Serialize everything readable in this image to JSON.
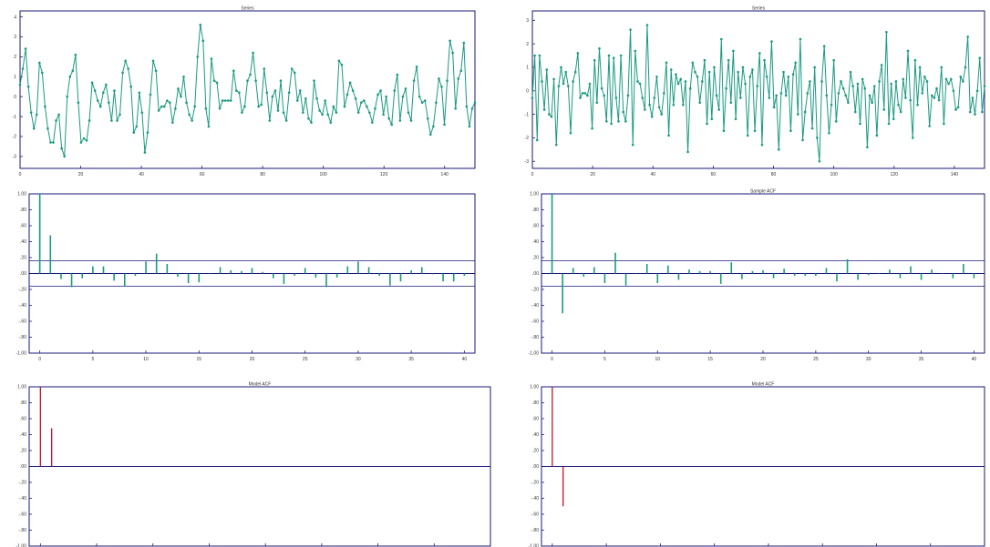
{
  "colors": {
    "series": "#1a9a80",
    "sample_acf": "#1a9a80",
    "model_acf": "#c8102e",
    "frame": "#1a1a7a",
    "bound": "#1a1a7a"
  },
  "chart_data": [
    {
      "id": "series-left",
      "type": "line",
      "title": "Series",
      "xlim": [
        0,
        150
      ],
      "ylim": [
        -3.6,
        4.3
      ],
      "xticks": [
        "0",
        "20",
        "40",
        "60",
        "80",
        "100",
        "120",
        "140"
      ],
      "yticks": [
        "-3",
        "-2",
        "-1",
        "0",
        "1",
        "2",
        "3",
        "4"
      ],
      "values": [
        0.6,
        1.4,
        2.4,
        0.5,
        -0.8,
        -1.6,
        -0.9,
        1.7,
        1.2,
        -0.5,
        -1.6,
        -2.3,
        -2.3,
        -1.2,
        -0.9,
        -2.6,
        -3.0,
        0.0,
        1.0,
        1.3,
        2.1,
        -0.3,
        -2.3,
        -2.1,
        -2.2,
        -1.2,
        0.7,
        0.3,
        -0.2,
        -0.5,
        0.2,
        0.6,
        -0.3,
        -1.2,
        0.3,
        -1.2,
        -0.9,
        1.2,
        1.8,
        1.4,
        0.5,
        -1.8,
        -1.5,
        0.2,
        -0.8,
        -2.8,
        -1.8,
        0.1,
        1.8,
        1.3,
        -0.7,
        -0.5,
        -0.5,
        -0.2,
        -0.3,
        -1.3,
        -0.6,
        0.4,
        0.0,
        1.0,
        -0.3,
        -0.9,
        -1.2,
        -0.5,
        2.0,
        3.6,
        2.8,
        -0.6,
        -1.5,
        1.9,
        0.8,
        0.7,
        -0.6,
        -0.2,
        -0.2,
        -0.2,
        -0.2,
        1.3,
        0.3,
        0.2,
        -0.8,
        -0.5,
        0.8,
        1.1,
        2.2,
        0.8,
        -0.5,
        -0.4,
        1.4,
        0.2,
        -1.2,
        0.0,
        0.3,
        -0.7,
        0.8,
        -0.8,
        -1.2,
        0.2,
        1.4,
        1.2,
        -0.2,
        0.3,
        -0.8,
        -0.1,
        -1.1,
        -1.3,
        0.8,
        -0.1,
        -0.7,
        -0.9,
        -0.2,
        -0.9,
        -1.3,
        -0.5,
        -0.8,
        1.8,
        1.6,
        -0.5,
        0.1,
        0.7,
        0.3,
        -0.1,
        -0.8,
        -0.3,
        -0.2,
        -0.5,
        -0.8,
        -1.3,
        -0.6,
        0.1,
        0.3,
        -0.9,
        0.0,
        -1.1,
        -1.4,
        0.3,
        1.1,
        -1.2,
        0.0,
        0.4,
        -0.8,
        -1.2,
        0.8,
        1.5,
        0.0,
        -0.3,
        -0.2,
        -1.1,
        -1.9,
        -1.5,
        -0.3,
        0.9,
        0.5,
        -1.4,
        0.8,
        2.8,
        2.2,
        -0.6,
        0.9,
        1.3,
        2.7,
        -0.5,
        -1.5,
        -0.6,
        -0.3
      ]
    },
    {
      "id": "series-right",
      "type": "line",
      "title": "Series",
      "xlim": [
        0,
        150
      ],
      "ylim": [
        -3.3,
        3.4
      ],
      "xticks": [
        "0",
        "20",
        "40",
        "60",
        "80",
        "100",
        "120",
        "140"
      ],
      "yticks": [
        "-3",
        "-2",
        "-1",
        "0",
        "1",
        "2",
        "3"
      ],
      "values": [
        -0.3,
        1.5,
        -2.1,
        1.5,
        0.4,
        -0.8,
        0.9,
        -1.0,
        -1.1,
        0.5,
        -2.3,
        0.2,
        1.0,
        0.3,
        0.8,
        0.2,
        -1.8,
        0.4,
        0.8,
        1.6,
        -0.3,
        -0.1,
        -0.1,
        -0.2,
        0.3,
        -1.6,
        1.3,
        -0.5,
        1.8,
        0.1,
        -0.2,
        -1.3,
        1.5,
        -1.4,
        1.4,
        -0.3,
        -1.3,
        1.5,
        -0.9,
        -1.3,
        -0.2,
        2.6,
        -2.3,
        1.7,
        0.4,
        0.3,
        -0.3,
        -0.8,
        2.8,
        -0.6,
        -1.1,
        -0.3,
        0.6,
        -0.7,
        -1.0,
        -0.1,
        1.2,
        -1.9,
        0.9,
        -0.6,
        0.7,
        0.3,
        0.5,
        -0.6,
        0.4,
        -2.6,
        0.1,
        1.2,
        0.8,
        0.6,
        -0.5,
        0.4,
        1.3,
        -1.4,
        0.8,
        -1.2,
        1.0,
        -0.2,
        -0.8,
        2.2,
        -1.7,
        0.1,
        1.3,
        -0.5,
        1.7,
        -1.2,
        0.8,
        -0.3,
        1.0,
        0.3,
        -1.9,
        0.6,
        0.9,
        -1.7,
        0.2,
        1.6,
        -2.3,
        1.3,
        0.6,
        -0.3,
        2.1,
        -0.7,
        -0.2,
        -2.5,
        -0.1,
        0.8,
        -0.2,
        0.6,
        -1.7,
        0.7,
        1.2,
        -1.0,
        2.2,
        -2.1,
        -0.9,
        -0.1,
        0.4,
        -1.6,
        1.0,
        -2.0,
        -3.0,
        0.4,
        1.9,
        -0.2,
        -1.8,
        -0.6,
        1.3,
        -1.3,
        -0.1,
        0.4,
        0.1,
        -0.2,
        -0.5,
        0.8,
        0.2,
        -0.9,
        0.3,
        -1.4,
        0.5,
        0.1,
        -2.4,
        -0.2,
        -0.5,
        0.2,
        -1.9,
        0.4,
        1.1,
        -0.8,
        2.5,
        -1.4,
        0.3,
        -1.2,
        0.4,
        -0.6,
        -0.9,
        0.5,
        -0.3,
        1.7,
        -0.4,
        -2.0,
        1.3,
        -0.6,
        1.0,
        -0.1,
        0.6,
        0.4,
        -1.5,
        -0.2,
        -0.3,
        0.1,
        -0.4,
        1.0,
        -1.4,
        0.5,
        0.3,
        0.5,
        0.0,
        -0.8,
        -0.7,
        0.6,
        0.4,
        1.0,
        2.3,
        -0.9,
        -0.3,
        -1.0,
        0.0,
        1.4,
        -0.9,
        0.2
      ]
    },
    {
      "id": "acf-left",
      "type": "bar",
      "title": "",
      "xlim": [
        -1,
        41
      ],
      "ylim": [
        -1,
        1
      ],
      "xticks": [
        "0",
        "5",
        "10",
        "15",
        "20",
        "25",
        "30",
        "35",
        "40"
      ],
      "yticks": [
        "1.00",
        ".80",
        ".60",
        ".40",
        ".20",
        ".00",
        "-.20",
        "-.40",
        "-.60",
        "-.80",
        "-1.00"
      ],
      "bounds": [
        0.16,
        -0.16
      ],
      "values": [
        1.0,
        0.48,
        -0.07,
        -0.17,
        -0.06,
        0.09,
        0.09,
        -0.09,
        -0.16,
        -0.03,
        0.15,
        0.25,
        0.12,
        -0.04,
        -0.12,
        -0.11,
        0.0,
        0.08,
        0.04,
        0.03,
        0.07,
        0.02,
        -0.06,
        -0.13,
        -0.03,
        0.07,
        -0.05,
        -0.17,
        -0.05,
        0.09,
        0.15,
        0.08,
        -0.03,
        -0.15,
        -0.1,
        0.04,
        0.08,
        -0.01,
        -0.1,
        -0.1,
        -0.03
      ]
    },
    {
      "id": "acf-right",
      "type": "bar",
      "title": "Sample ACF",
      "xlim": [
        -1,
        41
      ],
      "ylim": [
        -1,
        1
      ],
      "xticks": [
        "0",
        "5",
        "10",
        "15",
        "20",
        "25",
        "30",
        "35",
        "40"
      ],
      "yticks": [
        "1.00",
        ".80",
        ".60",
        ".40",
        ".20",
        ".00",
        "-.20",
        "-.40",
        "-.60",
        "-.80",
        "-1.00"
      ],
      "bounds": [
        0.16,
        -0.16
      ],
      "values": [
        1.0,
        -0.5,
        0.07,
        -0.04,
        0.08,
        -0.12,
        0.26,
        -0.15,
        0.0,
        0.12,
        -0.12,
        0.1,
        -0.08,
        0.05,
        0.03,
        0.03,
        -0.13,
        0.14,
        -0.07,
        0.03,
        0.04,
        -0.06,
        0.06,
        -0.03,
        -0.03,
        -0.03,
        0.07,
        -0.1,
        0.18,
        -0.08,
        -0.02,
        0.0,
        0.05,
        -0.06,
        0.09,
        -0.08,
        0.05,
        0.0,
        -0.06,
        0.12,
        -0.06
      ]
    },
    {
      "id": "model-acf-left",
      "type": "bar",
      "title": "Model ACF",
      "xlim": [
        -1,
        40
      ],
      "ylim": [
        -1,
        1
      ],
      "xticks": [],
      "yticks": [
        "1.00",
        ".80",
        ".60",
        ".40",
        ".20",
        ".00",
        "-.20",
        "-.40",
        "-.60",
        "-.80",
        "-1.00"
      ],
      "values": [
        1.0,
        0.48
      ]
    },
    {
      "id": "model-acf-right",
      "type": "bar",
      "title": "Model ACF",
      "xlim": [
        -1,
        40
      ],
      "ylim": [
        -1,
        1
      ],
      "xticks": [],
      "yticks": [
        "1.00",
        ".80",
        ".60",
        ".40",
        ".20",
        ".00",
        "-.20",
        "-.40",
        "-.60",
        "-.80",
        "-1.00"
      ],
      "values": [
        1.0,
        -0.5
      ]
    }
  ]
}
